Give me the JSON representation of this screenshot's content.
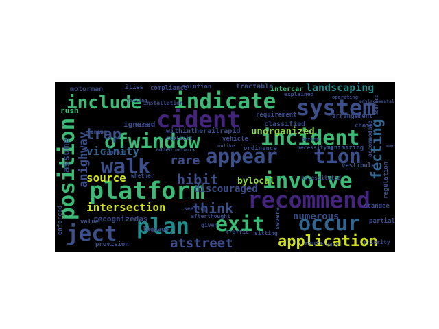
{
  "palette": {
    "background": "#000000",
    "purple": "#44247c",
    "indigo": "#3b4f8a",
    "blue": "#30668f",
    "teal": "#228b8d",
    "green": "#3bbb75",
    "lime": "#88d548",
    "yellow": "#d0e11c"
  },
  "words": [
    {
      "text": "include",
      "color": "#3bbb75"
    },
    {
      "text": "indicate",
      "color": "#3bbb75"
    },
    {
      "text": "system",
      "color": "#3b4f8a"
    },
    {
      "text": "cident",
      "color": "#44247c"
    },
    {
      "text": "incident",
      "color": "#3bbb75"
    },
    {
      "text": "ofwindow",
      "color": "#3bbb75"
    },
    {
      "text": "appear",
      "color": "#3b4f8a"
    },
    {
      "text": "tion",
      "color": "#3b4f8a"
    },
    {
      "text": "walk",
      "color": "#3b4f8a"
    },
    {
      "text": "platform",
      "color": "#3bbb75"
    },
    {
      "text": "involve",
      "color": "#3bbb75"
    },
    {
      "text": "recommend",
      "color": "#44247c"
    },
    {
      "text": "position",
      "color": "#3bbb75"
    },
    {
      "text": "trap",
      "color": "#3b4f8a"
    },
    {
      "text": "exit",
      "color": "#3bbb75"
    },
    {
      "text": "occur",
      "color": "#30668f"
    },
    {
      "text": "ject",
      "color": "#3b4f8a"
    },
    {
      "text": "plan",
      "color": "#228b8d"
    },
    {
      "text": "application",
      "color": "#d0e11c"
    },
    {
      "text": "atstreet",
      "color": "#3b4f8a"
    },
    {
      "text": "landscaping",
      "color": "#228b8d"
    },
    {
      "text": "intersection",
      "color": "#d0e11c"
    },
    {
      "text": "think",
      "color": "#3b4f8a"
    },
    {
      "text": "hibit",
      "color": "#3b4f8a"
    },
    {
      "text": "rare",
      "color": "#3b4f8a"
    },
    {
      "text": "source",
      "color": "#d0e11c"
    },
    {
      "text": "fecting",
      "color": "#30668f"
    },
    {
      "text": "vicinity",
      "color": "#30668f"
    },
    {
      "text": "discouraged",
      "color": "#3b4f8a"
    },
    {
      "text": "numerous",
      "color": "#3b4f8a"
    },
    {
      "text": "unorganized",
      "color": "#88d548"
    },
    {
      "text": "anighway",
      "color": "#3b4f8a"
    },
    {
      "text": "assume",
      "color": "#3b4f8a"
    },
    {
      "text": "rush",
      "color": "#3bbb75"
    },
    {
      "text": "bylocal",
      "color": "#88d548"
    },
    {
      "text": "recognizedas",
      "color": "#3b4f8a"
    },
    {
      "text": "ignored",
      "color": "#3b4f8a"
    },
    {
      "text": "withintherailrapid",
      "color": "#3b4f8a"
    },
    {
      "text": "classified",
      "color": "#3b4f8a"
    },
    {
      "text": "requirement",
      "color": "#3b4f8a"
    },
    {
      "text": "arrangement",
      "color": "#3b4f8a"
    },
    {
      "text": "chain",
      "color": "#3b4f8a"
    },
    {
      "text": "tractable",
      "color": "#3b4f8a"
    },
    {
      "text": "intercar",
      "color": "#3bbb75"
    },
    {
      "text": "motorman",
      "color": "#3b4f8a"
    },
    {
      "text": "ities",
      "color": "#3b4f8a"
    },
    {
      "text": "compliance",
      "color": "#3b4f8a"
    },
    {
      "text": "solution",
      "color": "#3b4f8a"
    },
    {
      "text": "installation",
      "color": "#3b4f8a"
    },
    {
      "text": "vestibule",
      "color": "#3b4f8a"
    },
    {
      "text": "regulation",
      "color": "#3b4f8a"
    },
    {
      "text": "standee",
      "color": "#3b4f8a"
    },
    {
      "text": "partial",
      "color": "#3b4f8a"
    },
    {
      "text": "severe",
      "color": "#3b4f8a"
    },
    {
      "text": "route",
      "color": "#3b4f8a"
    },
    {
      "text": "priority",
      "color": "#3b4f8a"
    },
    {
      "text": "provision",
      "color": "#3b4f8a"
    },
    {
      "text": "luggage",
      "color": "#3b4f8a"
    },
    {
      "text": "value",
      "color": "#3b4f8a"
    },
    {
      "text": "enforced",
      "color": "#3b4f8a"
    },
    {
      "text": "traffic",
      "color": "#3b4f8a"
    },
    {
      "text": "sitting",
      "color": "#3b4f8a"
    },
    {
      "text": "given",
      "color": "#3b4f8a"
    },
    {
      "text": "afterthought",
      "color": "#3b4f8a"
    },
    {
      "text": "comfort",
      "color": "#3b4f8a"
    },
    {
      "text": "whether",
      "color": "#3b4f8a"
    },
    {
      "text": "zoning",
      "color": "#3b4f8a"
    },
    {
      "text": "added",
      "color": "#3b4f8a"
    },
    {
      "text": "vehicle",
      "color": "#3b4f8a"
    },
    {
      "text": "ordinance",
      "color": "#3b4f8a"
    },
    {
      "text": "minimizing",
      "color": "#3b4f8a"
    },
    {
      "text": "accommodate",
      "color": "#3b4f8a"
    },
    {
      "text": "necessitated",
      "color": "#3b4f8a"
    },
    {
      "text": "seating",
      "color": "#3b4f8a"
    },
    {
      "text": "necessity",
      "color": "#3b4f8a"
    },
    {
      "text": "explicit",
      "color": "#3b4f8a"
    },
    {
      "text": "failing",
      "color": "#3b4f8a"
    },
    {
      "text": "explained",
      "color": "#3b4f8a"
    },
    {
      "text": "environmental",
      "color": "#3b4f8a"
    },
    {
      "text": "address",
      "color": "#3b4f8a"
    },
    {
      "text": "number",
      "color": "#3b4f8a"
    },
    {
      "text": "vary",
      "color": "#3b4f8a"
    },
    {
      "text": "operating",
      "color": "#3b4f8a"
    },
    {
      "text": "unlike",
      "color": "#3b4f8a"
    },
    {
      "text": "option",
      "color": "#3b4f8a"
    },
    {
      "text": "mixed",
      "color": "#3b4f8a"
    },
    {
      "text": "network",
      "color": "#3b4f8a"
    },
    {
      "text": "recon",
      "color": "#3b4f8a"
    }
  ]
}
